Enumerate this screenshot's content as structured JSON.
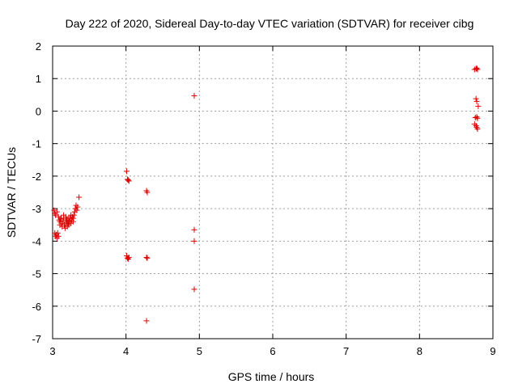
{
  "chart_data": {
    "type": "scatter",
    "title": "Day 222 of 2020, Sidereal Day-to-day VTEC variation (SDTVAR) for receiver cibg",
    "xlabel": "GPS time / hours",
    "ylabel": "SDTVAR / TECUs",
    "xlim": [
      3,
      9
    ],
    "ylim": [
      -7,
      2
    ],
    "xticks": [
      3,
      4,
      5,
      6,
      7,
      8,
      9
    ],
    "yticks": [
      2,
      1,
      0,
      -1,
      -2,
      -3,
      -4,
      -5,
      -6,
      -7
    ],
    "xtick_labels": [
      "3",
      "4",
      "5",
      "6",
      "7",
      "8",
      "9"
    ],
    "ytick_labels": [
      "2",
      "1",
      "0",
      "-1",
      "-2",
      "-3",
      "-4",
      "-5",
      "-6",
      "-7"
    ],
    "grid": true,
    "marker": "+",
    "color": "#e00000",
    "series": [
      {
        "name": "SDTVAR",
        "points": [
          [
            3.02,
            -3.05
          ],
          [
            3.03,
            -3.15
          ],
          [
            3.04,
            -3.2
          ],
          [
            3.03,
            -3.75
          ],
          [
            3.04,
            -3.85
          ],
          [
            3.05,
            -3.8
          ],
          [
            3.06,
            -3.9
          ],
          [
            3.07,
            -3.75
          ],
          [
            3.08,
            -3.85
          ],
          [
            3.06,
            -3.1
          ],
          [
            3.08,
            -3.25
          ],
          [
            3.09,
            -3.35
          ],
          [
            3.1,
            -3.4
          ],
          [
            3.1,
            -3.5
          ],
          [
            3.11,
            -3.3
          ],
          [
            3.12,
            -3.45
          ],
          [
            3.13,
            -3.55
          ],
          [
            3.14,
            -3.4
          ],
          [
            3.15,
            -3.3
          ],
          [
            3.16,
            -3.5
          ],
          [
            3.17,
            -3.6
          ],
          [
            3.18,
            -3.45
          ],
          [
            3.19,
            -3.35
          ],
          [
            3.2,
            -3.55
          ],
          [
            3.21,
            -3.45
          ],
          [
            3.22,
            -3.5
          ],
          [
            3.23,
            -3.4
          ],
          [
            3.24,
            -3.3
          ],
          [
            3.25,
            -3.45
          ],
          [
            3.26,
            -3.35
          ],
          [
            3.27,
            -3.25
          ],
          [
            3.28,
            -3.4
          ],
          [
            3.29,
            -3.2
          ],
          [
            3.3,
            -3.1
          ],
          [
            3.31,
            -3.0
          ],
          [
            3.32,
            -2.9
          ],
          [
            3.33,
            -3.05
          ],
          [
            3.34,
            -2.95
          ],
          [
            3.36,
            -2.65
          ],
          [
            3.15,
            -3.2
          ],
          [
            3.18,
            -3.25
          ],
          [
            3.22,
            -3.3
          ],
          [
            3.25,
            -3.2
          ],
          [
            3.12,
            -3.3
          ],
          [
            3.2,
            -3.35
          ],
          [
            3.28,
            -3.3
          ],
          [
            4.01,
            -1.85
          ],
          [
            4.02,
            -2.1
          ],
          [
            4.04,
            -2.15
          ],
          [
            4.03,
            -2.12
          ],
          [
            4.01,
            -4.45
          ],
          [
            4.02,
            -4.52
          ],
          [
            4.03,
            -4.55
          ],
          [
            4.04,
            -4.5
          ],
          [
            4.28,
            -2.45
          ],
          [
            4.29,
            -2.5
          ],
          [
            4.28,
            -4.5
          ],
          [
            4.29,
            -4.52
          ],
          [
            4.28,
            -6.45
          ],
          [
            4.93,
            0.47
          ],
          [
            4.93,
            -3.65
          ],
          [
            4.93,
            -4.0
          ],
          [
            4.93,
            -5.48
          ],
          [
            8.75,
            1.28
          ],
          [
            8.77,
            1.3
          ],
          [
            8.78,
            1.32
          ],
          [
            8.79,
            1.28
          ],
          [
            8.77,
            0.38
          ],
          [
            8.78,
            0.3
          ],
          [
            8.8,
            0.15
          ],
          [
            8.76,
            -0.2
          ],
          [
            8.78,
            -0.18
          ],
          [
            8.79,
            -0.22
          ],
          [
            8.75,
            -0.4
          ],
          [
            8.77,
            -0.45
          ],
          [
            8.78,
            -0.5
          ],
          [
            8.79,
            -0.55
          ]
        ]
      }
    ]
  }
}
